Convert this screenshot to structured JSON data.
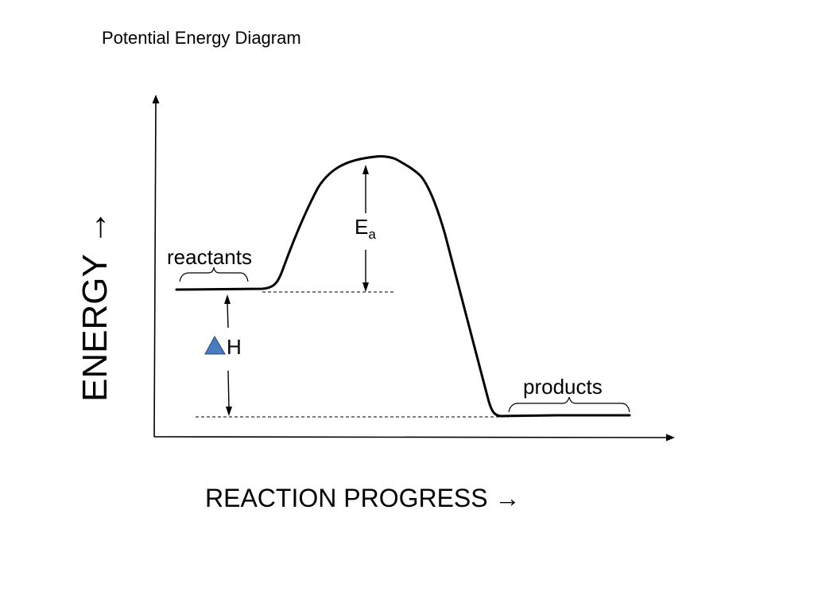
{
  "title": "Potential Energy Diagram",
  "y_axis_label": "ENERGY →",
  "x_axis_label": "REACTION PROGRESS →",
  "reactants_label": "reactants",
  "products_label": "products",
  "activation_energy": {
    "symbol": "E",
    "subscript": "a"
  },
  "enthalpy": {
    "symbol_icon": "delta-triangle-icon",
    "symbol_color": "#4a7ac0",
    "letter": "H"
  },
  "curve_color": "#000000"
}
